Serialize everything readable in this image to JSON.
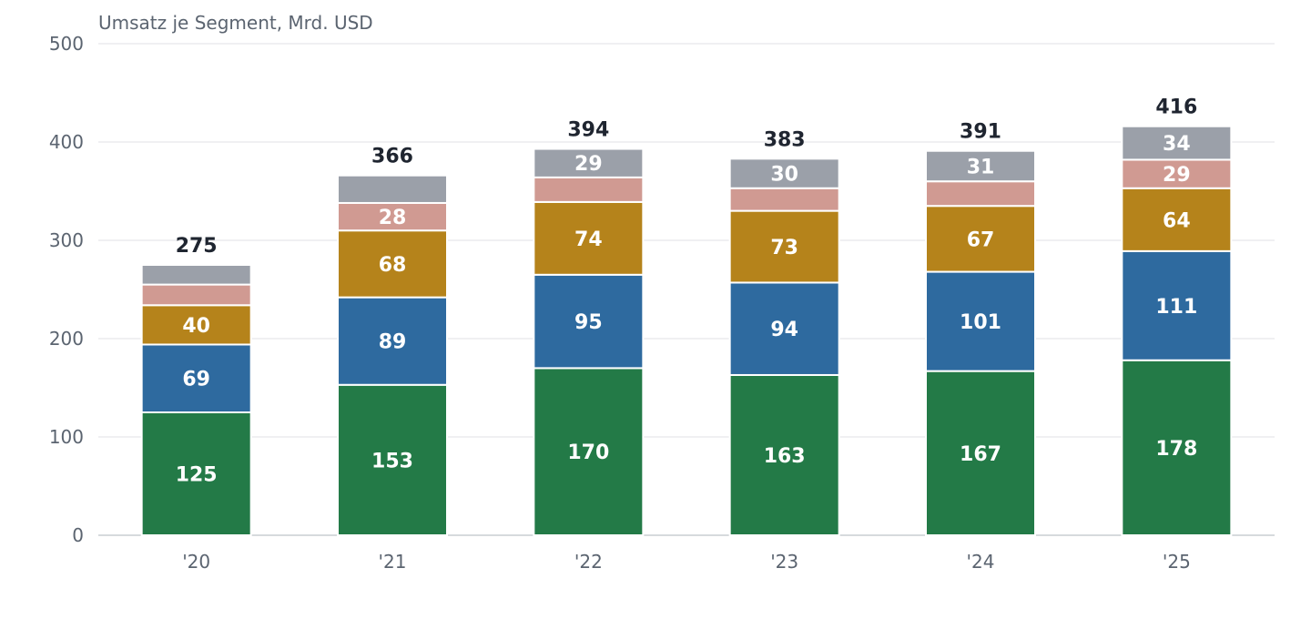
{
  "chart_data": {
    "type": "bar",
    "stacked": true,
    "ylabel": "Umsatz je Segment, Mrd. USD",
    "ylim": [
      0,
      500
    ],
    "yticks": [
      0,
      100,
      200,
      300,
      400,
      500
    ],
    "grid": true,
    "categories": [
      "'20",
      "'21",
      "'22",
      "'23",
      "'24",
      "'25"
    ],
    "series": [
      {
        "color": "#237a47",
        "values": [
          125,
          153,
          170,
          163,
          167,
          178
        ],
        "labels": [
          "125",
          "153",
          "170",
          "163",
          "167",
          "178"
        ]
      },
      {
        "color": "#2e6a9f",
        "values": [
          69,
          89,
          95,
          94,
          101,
          111
        ],
        "labels": [
          "69",
          "89",
          "95",
          "94",
          "101",
          "111"
        ]
      },
      {
        "color": "#b5831b",
        "values": [
          40,
          68,
          74,
          73,
          67,
          64
        ],
        "labels": [
          "40",
          "68",
          "74",
          "73",
          "67",
          "64"
        ]
      },
      {
        "color": "#d09a92",
        "values": [
          21,
          28,
          25,
          23,
          25,
          29
        ],
        "labels": [
          "",
          "28",
          "",
          "",
          "",
          "29"
        ]
      },
      {
        "color": "#9ba0a9",
        "values": [
          20,
          28,
          29,
          30,
          31,
          34
        ],
        "labels": [
          "",
          "",
          "29",
          "30",
          "31",
          "34"
        ]
      }
    ],
    "totals": [
      "275",
      "366",
      "394",
      "383",
      "391",
      "416"
    ]
  }
}
